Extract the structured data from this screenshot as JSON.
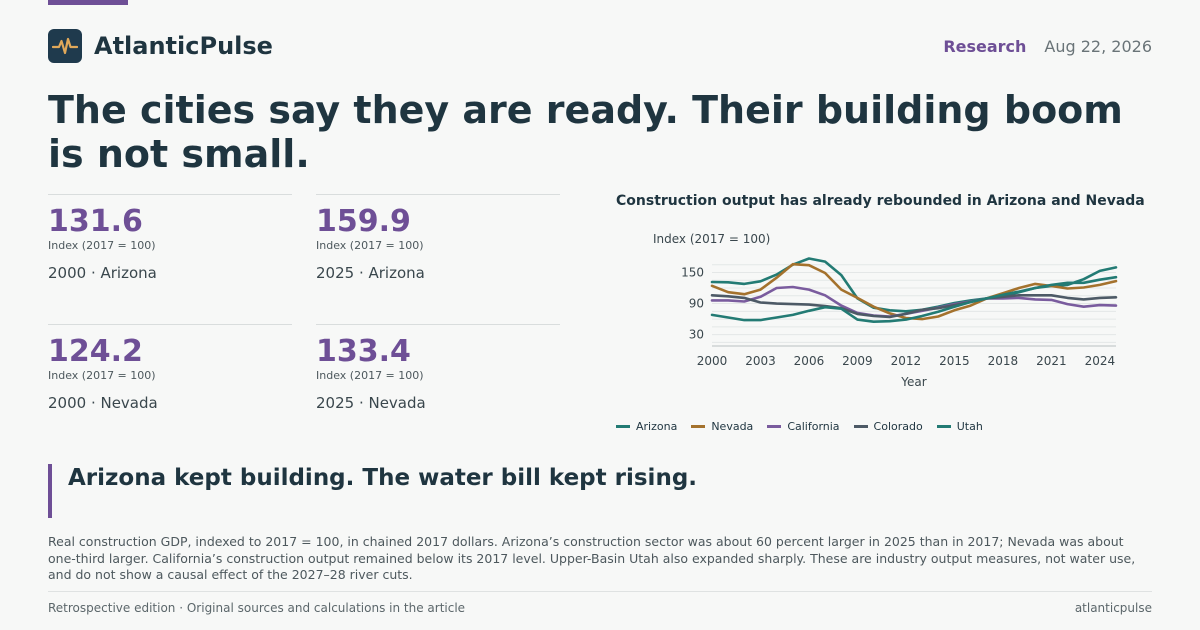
{
  "brand": {
    "name": "AtlanticPulse",
    "logo_icon": "pulse-icon"
  },
  "meta": {
    "section": "Research",
    "date": "Aug 22, 2026"
  },
  "headline": "The cities say they are ready. Their building boom is not small.",
  "stats": [
    {
      "value": "131.6",
      "unit": "Index (2017 = 100)",
      "label": "2000 · Arizona"
    },
    {
      "value": "159.9",
      "unit": "Index (2017 = 100)",
      "label": "2025 · Arizona"
    },
    {
      "value": "124.2",
      "unit": "Index (2017 = 100)",
      "label": "2000 · Nevada"
    },
    {
      "value": "133.4",
      "unit": "Index (2017 = 100)",
      "label": "2025 · Nevada"
    }
  ],
  "chart_data": {
    "type": "line",
    "title": "Construction output has already rebounded in Arizona and Nevada",
    "ylabel": "Index (2017 = 100)",
    "xlabel": "Year",
    "xlim": [
      2000,
      2025
    ],
    "ylim": [
      8,
      178
    ],
    "x_ticks": [
      2000,
      2003,
      2006,
      2009,
      2012,
      2015,
      2018,
      2021,
      2024
    ],
    "y_ticks": [
      30,
      90,
      150
    ],
    "grid": true,
    "legend_position": "bottom",
    "x": [
      2000,
      2001,
      2002,
      2003,
      2004,
      2005,
      2006,
      2007,
      2008,
      2009,
      2010,
      2011,
      2012,
      2013,
      2014,
      2015,
      2016,
      2017,
      2018,
      2019,
      2020,
      2021,
      2022,
      2023,
      2024,
      2025
    ],
    "series": [
      {
        "name": "Arizona",
        "color": "#237b74",
        "values": [
          131.6,
          131,
          128,
          133,
          146,
          165,
          177,
          171,
          145,
          100,
          82,
          77,
          75,
          78,
          84,
          91,
          96,
          100,
          104,
          112,
          120,
          124,
          126,
          137,
          153,
          159.9
        ]
      },
      {
        "name": "Nevada",
        "color": "#a4722d",
        "values": [
          124.2,
          112,
          108,
          117,
          140,
          166,
          164,
          149,
          117,
          101,
          84,
          71,
          62,
          60,
          65,
          77,
          86,
          100,
          110,
          120,
          128,
          124,
          119,
          121,
          126,
          133.4
        ]
      },
      {
        "name": "California",
        "color": "#7a5c9e",
        "values": [
          96,
          96,
          94,
          103,
          120,
          122,
          117,
          106,
          86,
          72,
          67,
          65,
          70,
          76,
          82,
          89,
          94,
          100,
          100,
          101,
          98,
          97,
          89,
          84,
          87,
          86
        ]
      },
      {
        "name": "Colorado",
        "color": "#4d5a66",
        "values": [
          106,
          104,
          101,
          92,
          90,
          89,
          88,
          85,
          81,
          70,
          66,
          64,
          70,
          78,
          81,
          87,
          93,
          100,
          103,
          106,
          106,
          106,
          101,
          98,
          101,
          102
        ]
      },
      {
        "name": "Utah",
        "color": "#237b74",
        "values": [
          68,
          63,
          58,
          58,
          63,
          68,
          76,
          83,
          80,
          59,
          55,
          56,
          59,
          66,
          74,
          84,
          93,
          100,
          107,
          113,
          120,
          126,
          130,
          130,
          136,
          141
        ]
      }
    ]
  },
  "pull_quote": "Arizona kept building. The water bill kept rising.",
  "note": "Real construction GDP, indexed to 2017 = 100, in chained 2017 dollars. Arizona’s construction sector was about 60 percent larger in 2025 than in 2017; Nevada was about one-third larger. California’s construction output remained below its 2017 level. Upper-Basin Utah also expanded sharply. These are industry output measures, not water use, and do not show a causal effect of the 2027–28 river cuts.",
  "footer": {
    "left": "Retrospective edition · Original sources and calculations in the article",
    "right": "atlanticpulse"
  }
}
